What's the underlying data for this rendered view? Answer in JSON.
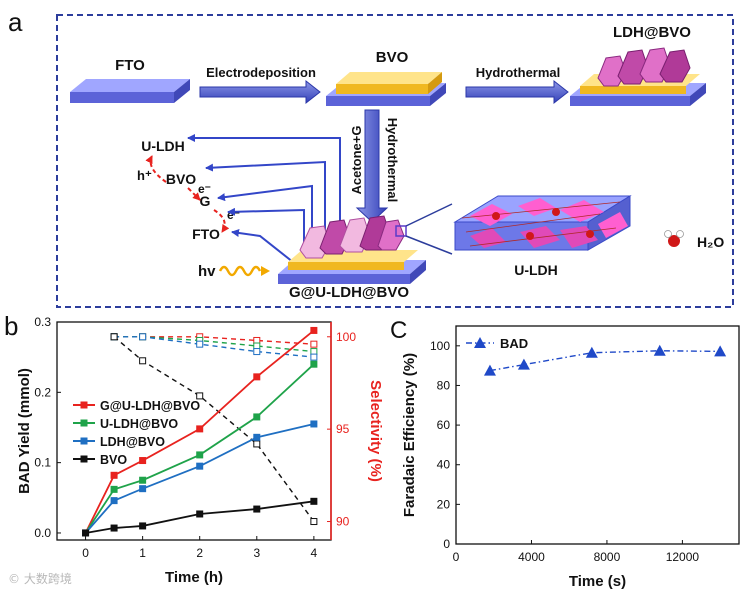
{
  "panels": {
    "a": "a",
    "b": "b",
    "c": "C"
  },
  "schematic": {
    "fto": "FTO",
    "electrodeposition": "Electrodeposition",
    "bvo": "BVO",
    "hydrothermal": "Hydrothermal",
    "ldh_bvo": "LDH@BVO",
    "acetone_g": "Acetone+G",
    "hydrothermal_vertical": "Hydrothermal",
    "u_ldh_label": "U-LDH",
    "h_plus": "h⁺",
    "bvo_label": "BVO",
    "e_minus_1": "e⁻",
    "g_label": "G",
    "e_minus_2": "e⁻",
    "fto_label": "FTO",
    "hv": "hv",
    "product": "G@U-LDH@BVO",
    "u_ldh_crystal": "U-LDH",
    "water": "H₂O"
  },
  "chart_data": [
    {
      "type": "line",
      "title": "",
      "xlabel": "Time (h)",
      "ylabel": "BAD Yield (mmol)",
      "y2label": "Selectivity (%)",
      "x": [
        0,
        0.5,
        1,
        2,
        3,
        4
      ],
      "xticks": [
        "0",
        "1",
        "2",
        "3",
        "4"
      ],
      "xlim": [
        -0.5,
        4.3
      ],
      "ylim": [
        -0.01,
        0.3
      ],
      "yticks": [
        "0.0",
        "0.1",
        "0.2",
        "0.3"
      ],
      "y2lim": [
        89.0,
        100.8
      ],
      "y2ticks": [
        "90",
        "95",
        "100"
      ],
      "legend": "left-middle",
      "series": [
        {
          "name": "G@U-LDH@BVO",
          "color": "#e8231f",
          "values": [
            0,
            0.082,
            0.103,
            0.148,
            0.222,
            0.288
          ]
        },
        {
          "name": "U-LDH@BVO",
          "color": "#1fa34a",
          "values": [
            0,
            0.062,
            0.075,
            0.111,
            0.165,
            0.24
          ]
        },
        {
          "name": "LDH@BVO",
          "color": "#1f6fc2",
          "values": [
            0,
            0.046,
            0.063,
            0.095,
            0.136,
            0.155
          ]
        },
        {
          "name": "BVO",
          "color": "#111111",
          "values": [
            0,
            0.007,
            0.01,
            0.027,
            0.034,
            0.045
          ]
        }
      ],
      "selectivity_x": [
        0.5,
        1,
        2,
        3,
        4
      ],
      "selectivity_series": [
        {
          "name": "G@U-LDH@BVO",
          "color": "#e8231f",
          "values": [
            100,
            100,
            100,
            99.8,
            99.6
          ]
        },
        {
          "name": "U-LDH@BVO",
          "color": "#1fa34a",
          "values": [
            100,
            100,
            99.8,
            99.5,
            99.2
          ]
        },
        {
          "name": "LDH@BVO",
          "color": "#1f6fc2",
          "values": [
            100,
            100,
            99.6,
            99.2,
            98.9
          ]
        },
        {
          "name": "BVO",
          "color": "#111111",
          "values": [
            100,
            98.7,
            96.8,
            94.2,
            90.0
          ]
        }
      ]
    },
    {
      "type": "line",
      "title": "",
      "xlabel": "Time (s)",
      "ylabel": "Faradaic Efficiency (%)",
      "xlim": [
        0,
        15000
      ],
      "xticks": [
        "0",
        "4000",
        "8000",
        "12000"
      ],
      "ylim": [
        0,
        110
      ],
      "yticks": [
        "0",
        "20",
        "40",
        "60",
        "80",
        "100"
      ],
      "legend": "top-left",
      "series": [
        {
          "name": "BAD",
          "color": "#1f49c8",
          "x": [
            1800,
            3600,
            7200,
            10800,
            14000
          ],
          "values": [
            87.5,
            90.5,
            96.5,
            97.5,
            97.2
          ]
        }
      ]
    }
  ]
}
